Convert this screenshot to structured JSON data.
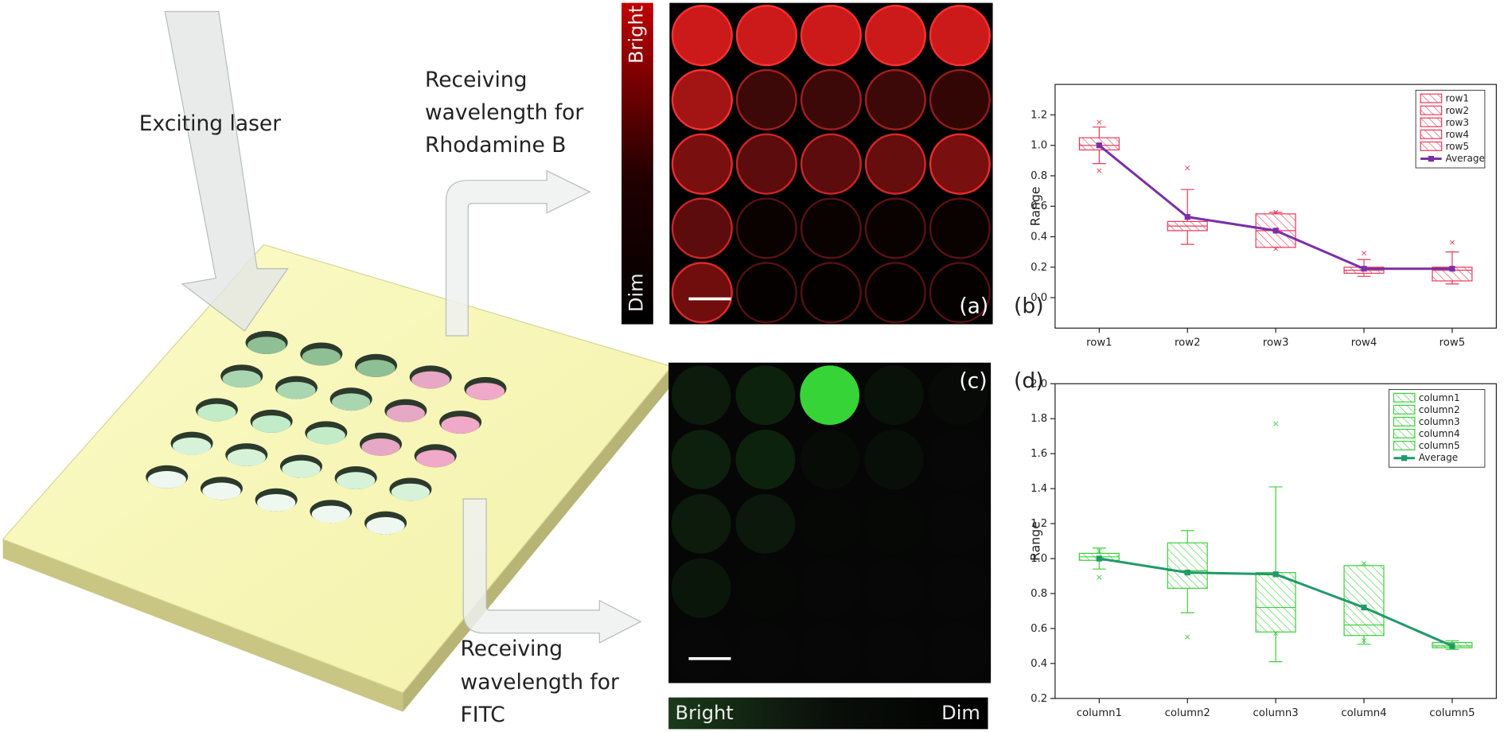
{
  "figure": {
    "laser_label": "Exciting laser",
    "rhodamine_label": [
      "Receiving",
      "wavelength for",
      "Rhodamine B"
    ],
    "fitc_label": [
      "Receiving",
      "wavelength for",
      "FITC"
    ],
    "panel_a": "(a)",
    "panel_b": "(b)",
    "panel_c": "(c)",
    "panel_d": "(d)",
    "red_bar": {
      "top": "Bright",
      "bottom": "Dim"
    },
    "green_bar": {
      "left": "Bright",
      "right": "Dim"
    }
  },
  "chart_data": [
    {
      "type": "box",
      "ylabel": "Range",
      "categories": [
        "row1",
        "row2",
        "row3",
        "row4",
        "row5"
      ],
      "box_color": "#e8395a",
      "ylim": [
        -0.2,
        1.4
      ],
      "yticks": [
        {
          "value": 0,
          "label": "0.0"
        },
        0.2,
        0.4,
        0.6,
        0.8,
        {
          "value": 1,
          "label": "1.0"
        },
        1.2
      ],
      "boxes": [
        {
          "name": "row1",
          "min": 0.88,
          "q1": 0.97,
          "median": 1.0,
          "q3": 1.05,
          "max": 1.12,
          "outliers": [
            1.15,
            0.83
          ]
        },
        {
          "name": "row2",
          "min": 0.35,
          "q1": 0.44,
          "median": 0.47,
          "q3": 0.5,
          "max": 0.71,
          "outliers": [
            0.85
          ]
        },
        {
          "name": "row3",
          "min": 0.33,
          "q1": 0.33,
          "median": 0.44,
          "q3": 0.55,
          "max": 0.56,
          "outliers": [
            0.56,
            0.32
          ]
        },
        {
          "name": "row4",
          "min": 0.14,
          "q1": 0.16,
          "median": 0.18,
          "q3": 0.2,
          "max": 0.25,
          "outliers": [
            0.29
          ]
        },
        {
          "name": "row5",
          "min": 0.09,
          "q1": 0.11,
          "median": 0.18,
          "q3": 0.2,
          "max": 0.3,
          "outliers": [
            0.36
          ]
        }
      ],
      "mean_series": {
        "name": "Average",
        "color": "#7b2fa8",
        "values": [
          1.0,
          0.53,
          0.44,
          0.19,
          0.19
        ]
      },
      "legend": "upper right"
    },
    {
      "type": "box",
      "ylabel": "Range",
      "categories": [
        "column1",
        "column2",
        "column3",
        "column4",
        "column5"
      ],
      "box_color": "#3ccf3c",
      "ylim": [
        0.2,
        2.0
      ],
      "yticks": [
        0.2,
        0.4,
        0.6,
        0.8,
        {
          "value": 1,
          "label": "1.0"
        },
        1.2,
        1.4,
        1.6,
        1.8,
        {
          "value": 2,
          "label": "2.0"
        }
      ],
      "boxes": [
        {
          "name": "column1",
          "min": 0.94,
          "q1": 0.99,
          "median": 1.01,
          "q3": 1.03,
          "max": 1.06,
          "outliers": [
            0.89,
            1.04
          ]
        },
        {
          "name": "column2",
          "min": 0.69,
          "q1": 0.83,
          "median": 0.93,
          "q3": 1.09,
          "max": 1.16,
          "outliers": [
            0.55
          ]
        },
        {
          "name": "column3",
          "min": 0.41,
          "q1": 0.58,
          "median": 0.72,
          "q3": 0.92,
          "max": 1.41,
          "outliers": [
            1.77,
            0.57
          ]
        },
        {
          "name": "column4",
          "min": 0.51,
          "q1": 0.56,
          "median": 0.62,
          "q3": 0.96,
          "max": 0.96,
          "outliers": [
            0.97,
            0.53
          ]
        },
        {
          "name": "column5",
          "min": 0.48,
          "q1": 0.49,
          "median": 0.5,
          "q3": 0.52,
          "max": 0.53,
          "outliers": []
        }
      ],
      "mean_series": {
        "name": "Average",
        "color": "#1f9a6a",
        "values": [
          1.0,
          0.92,
          0.91,
          0.72,
          0.5
        ]
      },
      "legend": "upper right"
    }
  ]
}
